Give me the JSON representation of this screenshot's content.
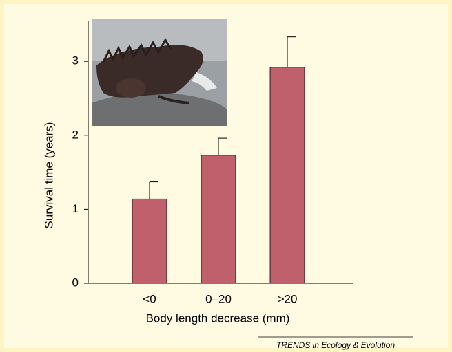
{
  "chart_data": {
    "type": "bar",
    "categories": [
      "<0",
      "0–20",
      ">20"
    ],
    "values": [
      1.14,
      1.73,
      2.92
    ],
    "errors": [
      0.23,
      0.23,
      0.41
    ],
    "color": "#c0606c",
    "xlabel": "Body length decrease (mm)",
    "ylabel": "Survival time (years)",
    "ylim": [
      0,
      3.55
    ],
    "yticks": [
      0,
      1,
      2,
      3
    ],
    "source": "TRENDS in Ecology & Evolution"
  }
}
